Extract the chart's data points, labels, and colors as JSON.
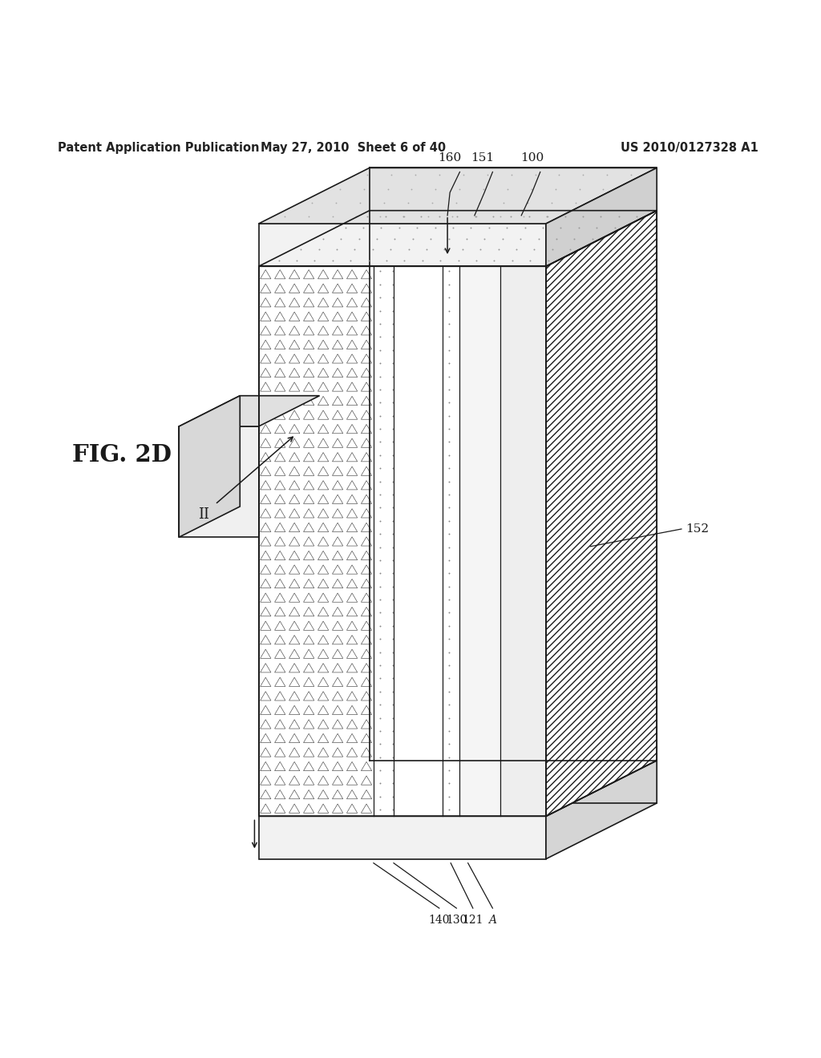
{
  "title_left": "Patent Application Publication",
  "title_mid": "May 27, 2010  Sheet 6 of 40",
  "title_right": "US 2010/0127328 A1",
  "fig_label": "FIG. 2D",
  "bg_color": "#ffffff",
  "line_color": "#1a1a1a"
}
